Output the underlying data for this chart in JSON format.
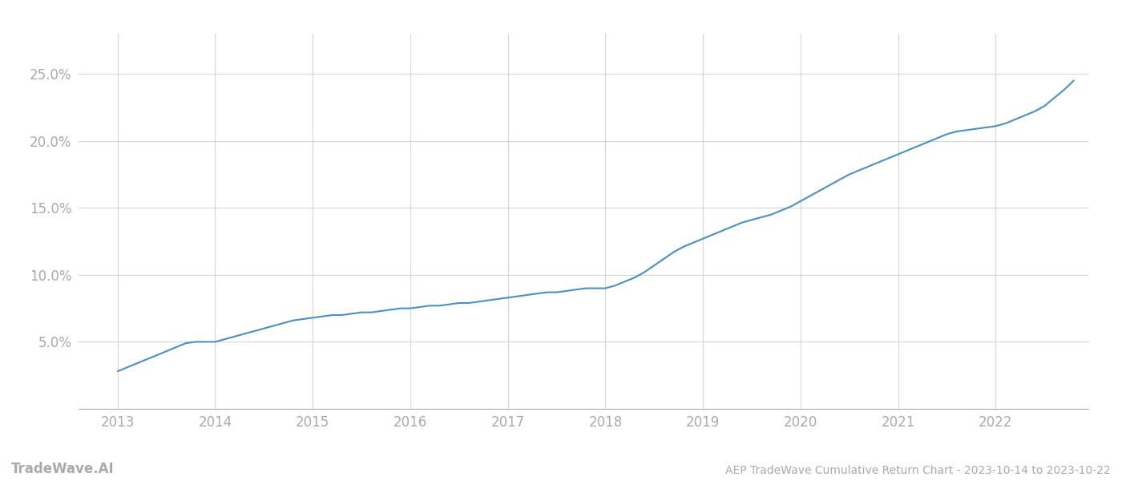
{
  "title": "AEP TradeWave Cumulative Return Chart - 2023-10-14 to 2023-10-22",
  "watermark": "TradeWave.AI",
  "line_color": "#4a90c4",
  "background_color": "#ffffff",
  "grid_color": "#cccccc",
  "x_data": [
    2013.0,
    2013.1,
    2013.2,
    2013.3,
    2013.4,
    2013.5,
    2013.6,
    2013.7,
    2013.8,
    2013.9,
    2014.0,
    2014.1,
    2014.2,
    2014.3,
    2014.4,
    2014.5,
    2014.6,
    2014.7,
    2014.8,
    2014.9,
    2015.0,
    2015.1,
    2015.2,
    2015.3,
    2015.4,
    2015.5,
    2015.6,
    2015.7,
    2015.8,
    2015.9,
    2016.0,
    2016.1,
    2016.2,
    2016.3,
    2016.4,
    2016.5,
    2016.6,
    2016.7,
    2016.8,
    2016.9,
    2017.0,
    2017.1,
    2017.2,
    2017.3,
    2017.4,
    2017.5,
    2017.6,
    2017.7,
    2017.8,
    2017.9,
    2018.0,
    2018.1,
    2018.2,
    2018.3,
    2018.4,
    2018.5,
    2018.6,
    2018.7,
    2018.8,
    2018.9,
    2019.0,
    2019.1,
    2019.2,
    2019.3,
    2019.4,
    2019.5,
    2019.6,
    2019.7,
    2019.8,
    2019.9,
    2020.0,
    2020.1,
    2020.2,
    2020.3,
    2020.4,
    2020.5,
    2020.6,
    2020.7,
    2020.8,
    2020.9,
    2021.0,
    2021.1,
    2021.2,
    2021.3,
    2021.4,
    2021.5,
    2021.6,
    2021.7,
    2021.8,
    2021.9,
    2022.0,
    2022.1,
    2022.2,
    2022.3,
    2022.4,
    2022.5,
    2022.6,
    2022.7,
    2022.8
  ],
  "y_data": [
    0.028,
    0.031,
    0.034,
    0.037,
    0.04,
    0.043,
    0.046,
    0.049,
    0.05,
    0.05,
    0.05,
    0.052,
    0.054,
    0.056,
    0.058,
    0.06,
    0.062,
    0.064,
    0.066,
    0.067,
    0.068,
    0.069,
    0.07,
    0.07,
    0.071,
    0.072,
    0.072,
    0.073,
    0.074,
    0.075,
    0.075,
    0.076,
    0.077,
    0.077,
    0.078,
    0.079,
    0.079,
    0.08,
    0.081,
    0.082,
    0.083,
    0.084,
    0.085,
    0.086,
    0.087,
    0.087,
    0.088,
    0.089,
    0.09,
    0.09,
    0.09,
    0.092,
    0.095,
    0.098,
    0.102,
    0.107,
    0.112,
    0.117,
    0.121,
    0.124,
    0.127,
    0.13,
    0.133,
    0.136,
    0.139,
    0.141,
    0.143,
    0.145,
    0.148,
    0.151,
    0.155,
    0.159,
    0.163,
    0.167,
    0.171,
    0.175,
    0.178,
    0.181,
    0.184,
    0.187,
    0.19,
    0.193,
    0.196,
    0.199,
    0.202,
    0.205,
    0.207,
    0.208,
    0.209,
    0.21,
    0.211,
    0.213,
    0.216,
    0.219,
    0.222,
    0.226,
    0.232,
    0.238,
    0.245
  ],
  "ylim": [
    0.0,
    0.28
  ],
  "xlim": [
    2012.6,
    2022.95
  ],
  "yticks": [
    0.05,
    0.1,
    0.15,
    0.2,
    0.25
  ],
  "ytick_labels": [
    "5.0%",
    "10.0%",
    "15.0%",
    "20.0%",
    "25.0%"
  ],
  "xticks": [
    2013,
    2014,
    2015,
    2016,
    2017,
    2018,
    2019,
    2020,
    2021,
    2022
  ],
  "line_width": 1.5,
  "title_fontsize": 10,
  "tick_fontsize": 12,
  "watermark_fontsize": 12
}
